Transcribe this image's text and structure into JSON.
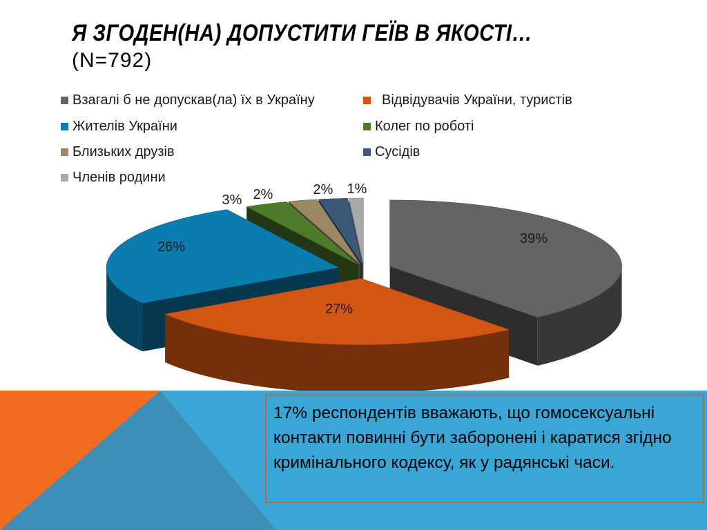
{
  "title": {
    "line1": "Я ЗГОДЕН(НА) ДОПУСТИТИ ГЕЇВ В ЯКОСТІ…",
    "line2": "(N=792)"
  },
  "note": {
    "text": "17% респондентів вважають, що гомосексуальні контакти повинні бути заборонені і каратися згідно кримінального кодексу, як у радянські часи."
  },
  "colors": {
    "accent_orange": "#f26c1f",
    "accent_blue": "#3aa6d6",
    "note_border": "#c8663c"
  },
  "chart_data": {
    "type": "pie",
    "style": "3d-exploded",
    "legend_position": "top",
    "categories": [
      "Взагалі б не допускав(ла) їх в Україну",
      "Відвідувачів України, туристів",
      "Жителів України",
      "Колег по роботі",
      "Близьких друзів",
      "Сусідів",
      "Членів родини"
    ],
    "values": [
      39,
      27,
      26,
      3,
      2,
      2,
      1
    ],
    "labels": [
      "39%",
      "27%",
      "26%",
      "3%",
      "2%",
      "2%",
      "1%"
    ],
    "colors": [
      "#646464",
      "#d35514",
      "#0a7cae",
      "#4e7a2c",
      "#9b8766",
      "#3b5878",
      "#a9a9a9"
    ]
  }
}
